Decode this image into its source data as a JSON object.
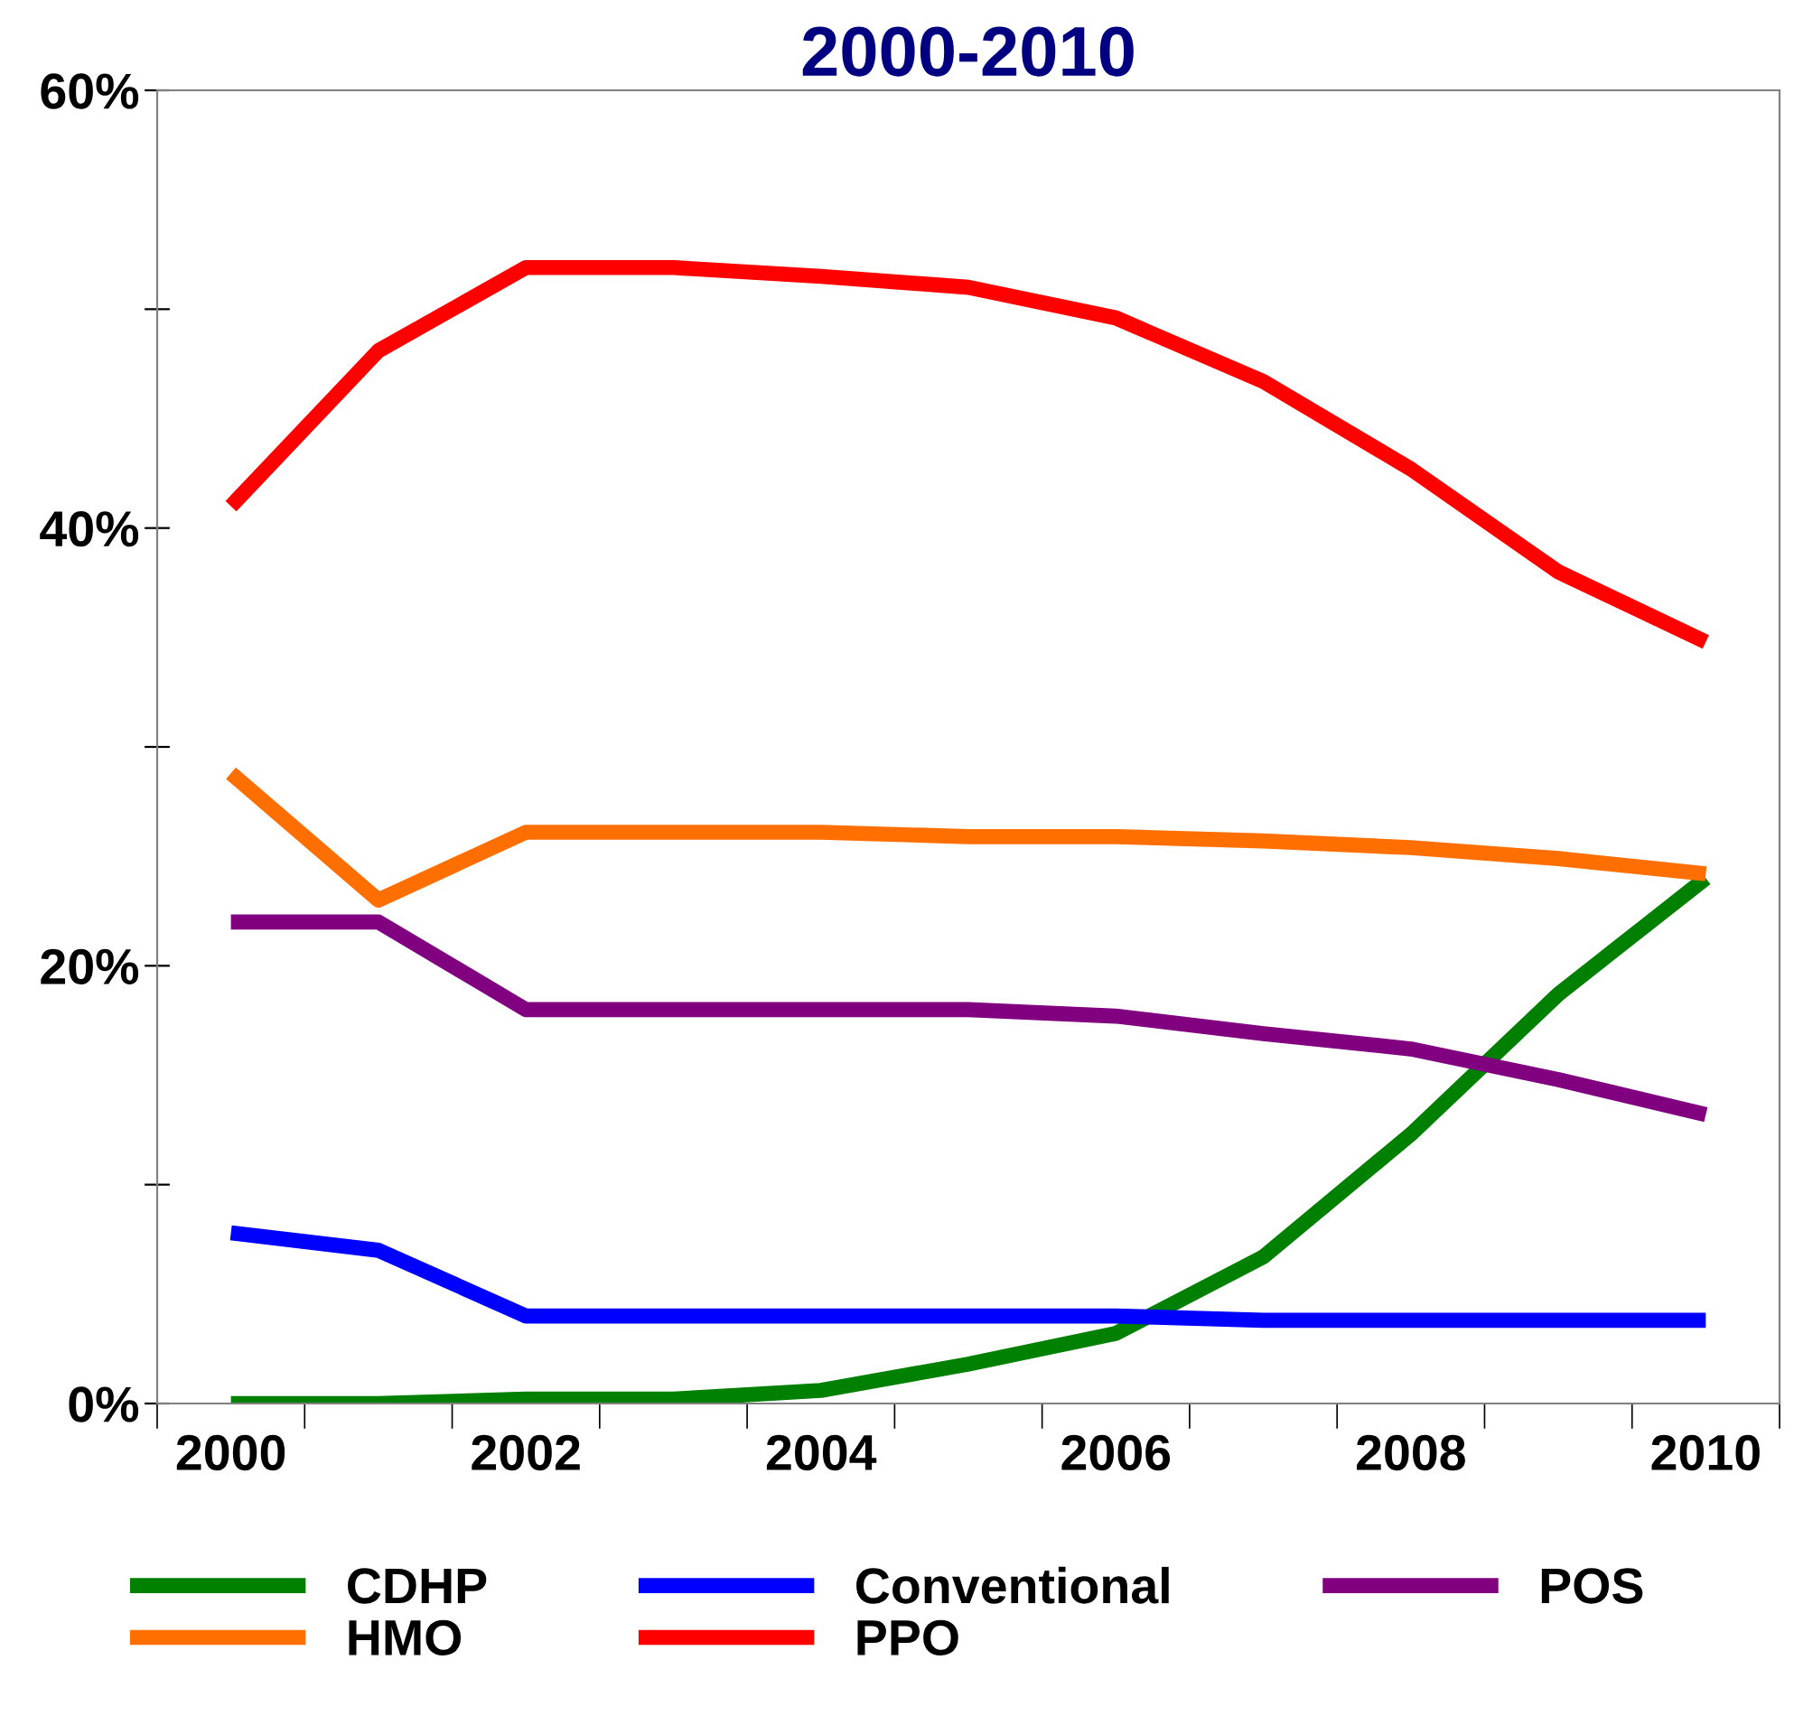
{
  "chart_data": {
    "type": "line",
    "title": "2000-2010",
    "categories": [
      "2000",
      null,
      "2002",
      null,
      "2004",
      null,
      "2006",
      null,
      "2008",
      null,
      "2010"
    ],
    "series": [
      {
        "name": "CDHP",
        "color": "#008000",
        "values": [
          0,
          0,
          0.2,
          0.2,
          0.6,
          1.8,
          3.2,
          6.7,
          12.3,
          18.7,
          24.0
        ]
      },
      {
        "name": "HMO",
        "color": "#ff6f00",
        "values": [
          28.8,
          23.0,
          26.1,
          26.1,
          26.1,
          25.9,
          25.9,
          25.7,
          25.4,
          24.9,
          24.2
        ]
      },
      {
        "name": "Conventional",
        "color": "#0000ff",
        "values": [
          7.8,
          7.0,
          4.0,
          4.0,
          4.0,
          4.0,
          4.0,
          3.8,
          3.8,
          3.8,
          3.8
        ]
      },
      {
        "name": "PPO",
        "color": "#ff0000",
        "values": [
          41.0,
          48.1,
          51.9,
          51.9,
          51.5,
          51.0,
          49.6,
          46.7,
          42.7,
          38.0,
          34.8
        ]
      },
      {
        "name": "POS",
        "color": "#800080",
        "values": [
          22.0,
          22.0,
          18.0,
          18.0,
          18.0,
          18.0,
          17.7,
          16.9,
          16.2,
          14.8,
          13.2
        ]
      }
    ],
    "ylim": [
      0,
      60
    ],
    "yticks": [
      {
        "value": 0,
        "label": "0%"
      },
      {
        "value": 10,
        "label": null
      },
      {
        "value": 20,
        "label": "20%"
      },
      {
        "value": 30,
        "label": null
      },
      {
        "value": 40,
        "label": "40%"
      },
      {
        "value": 50,
        "label": null
      },
      {
        "value": 60,
        "label": "60%"
      }
    ],
    "grid": false,
    "legend": "bottom",
    "marker": "none",
    "line_style": "solid"
  }
}
